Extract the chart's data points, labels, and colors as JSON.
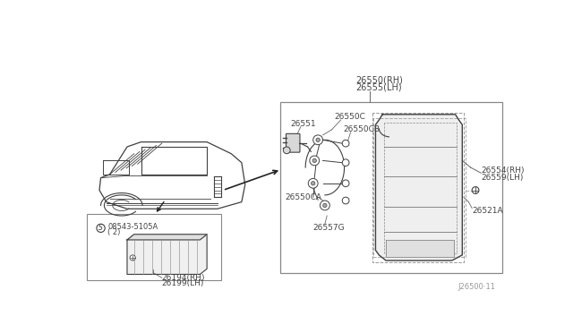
{
  "background_color": "#ffffff",
  "line_color": "#404040",
  "label_color": "#555555",
  "figsize": [
    6.4,
    3.72
  ],
  "dpi": 100,
  "parts": {
    "main_lamp_label1": "26550(RH)",
    "main_lamp_label2": "26555(LH)",
    "part_26551": "26551",
    "part_26550C": "26550C",
    "part_26550CB": "26550CB",
    "part_26554": "26554(RH)",
    "part_26559": "26559(LH)",
    "part_26550CA": "26550CA",
    "part_26557G": "26557G",
    "part_26521A": "26521A",
    "part_26194": "26194(RH)",
    "part_26199": "26199(LH)",
    "part_screw": "08543-5105A",
    "part_screw2": "( 2)",
    "watermark": "J26500·11"
  }
}
